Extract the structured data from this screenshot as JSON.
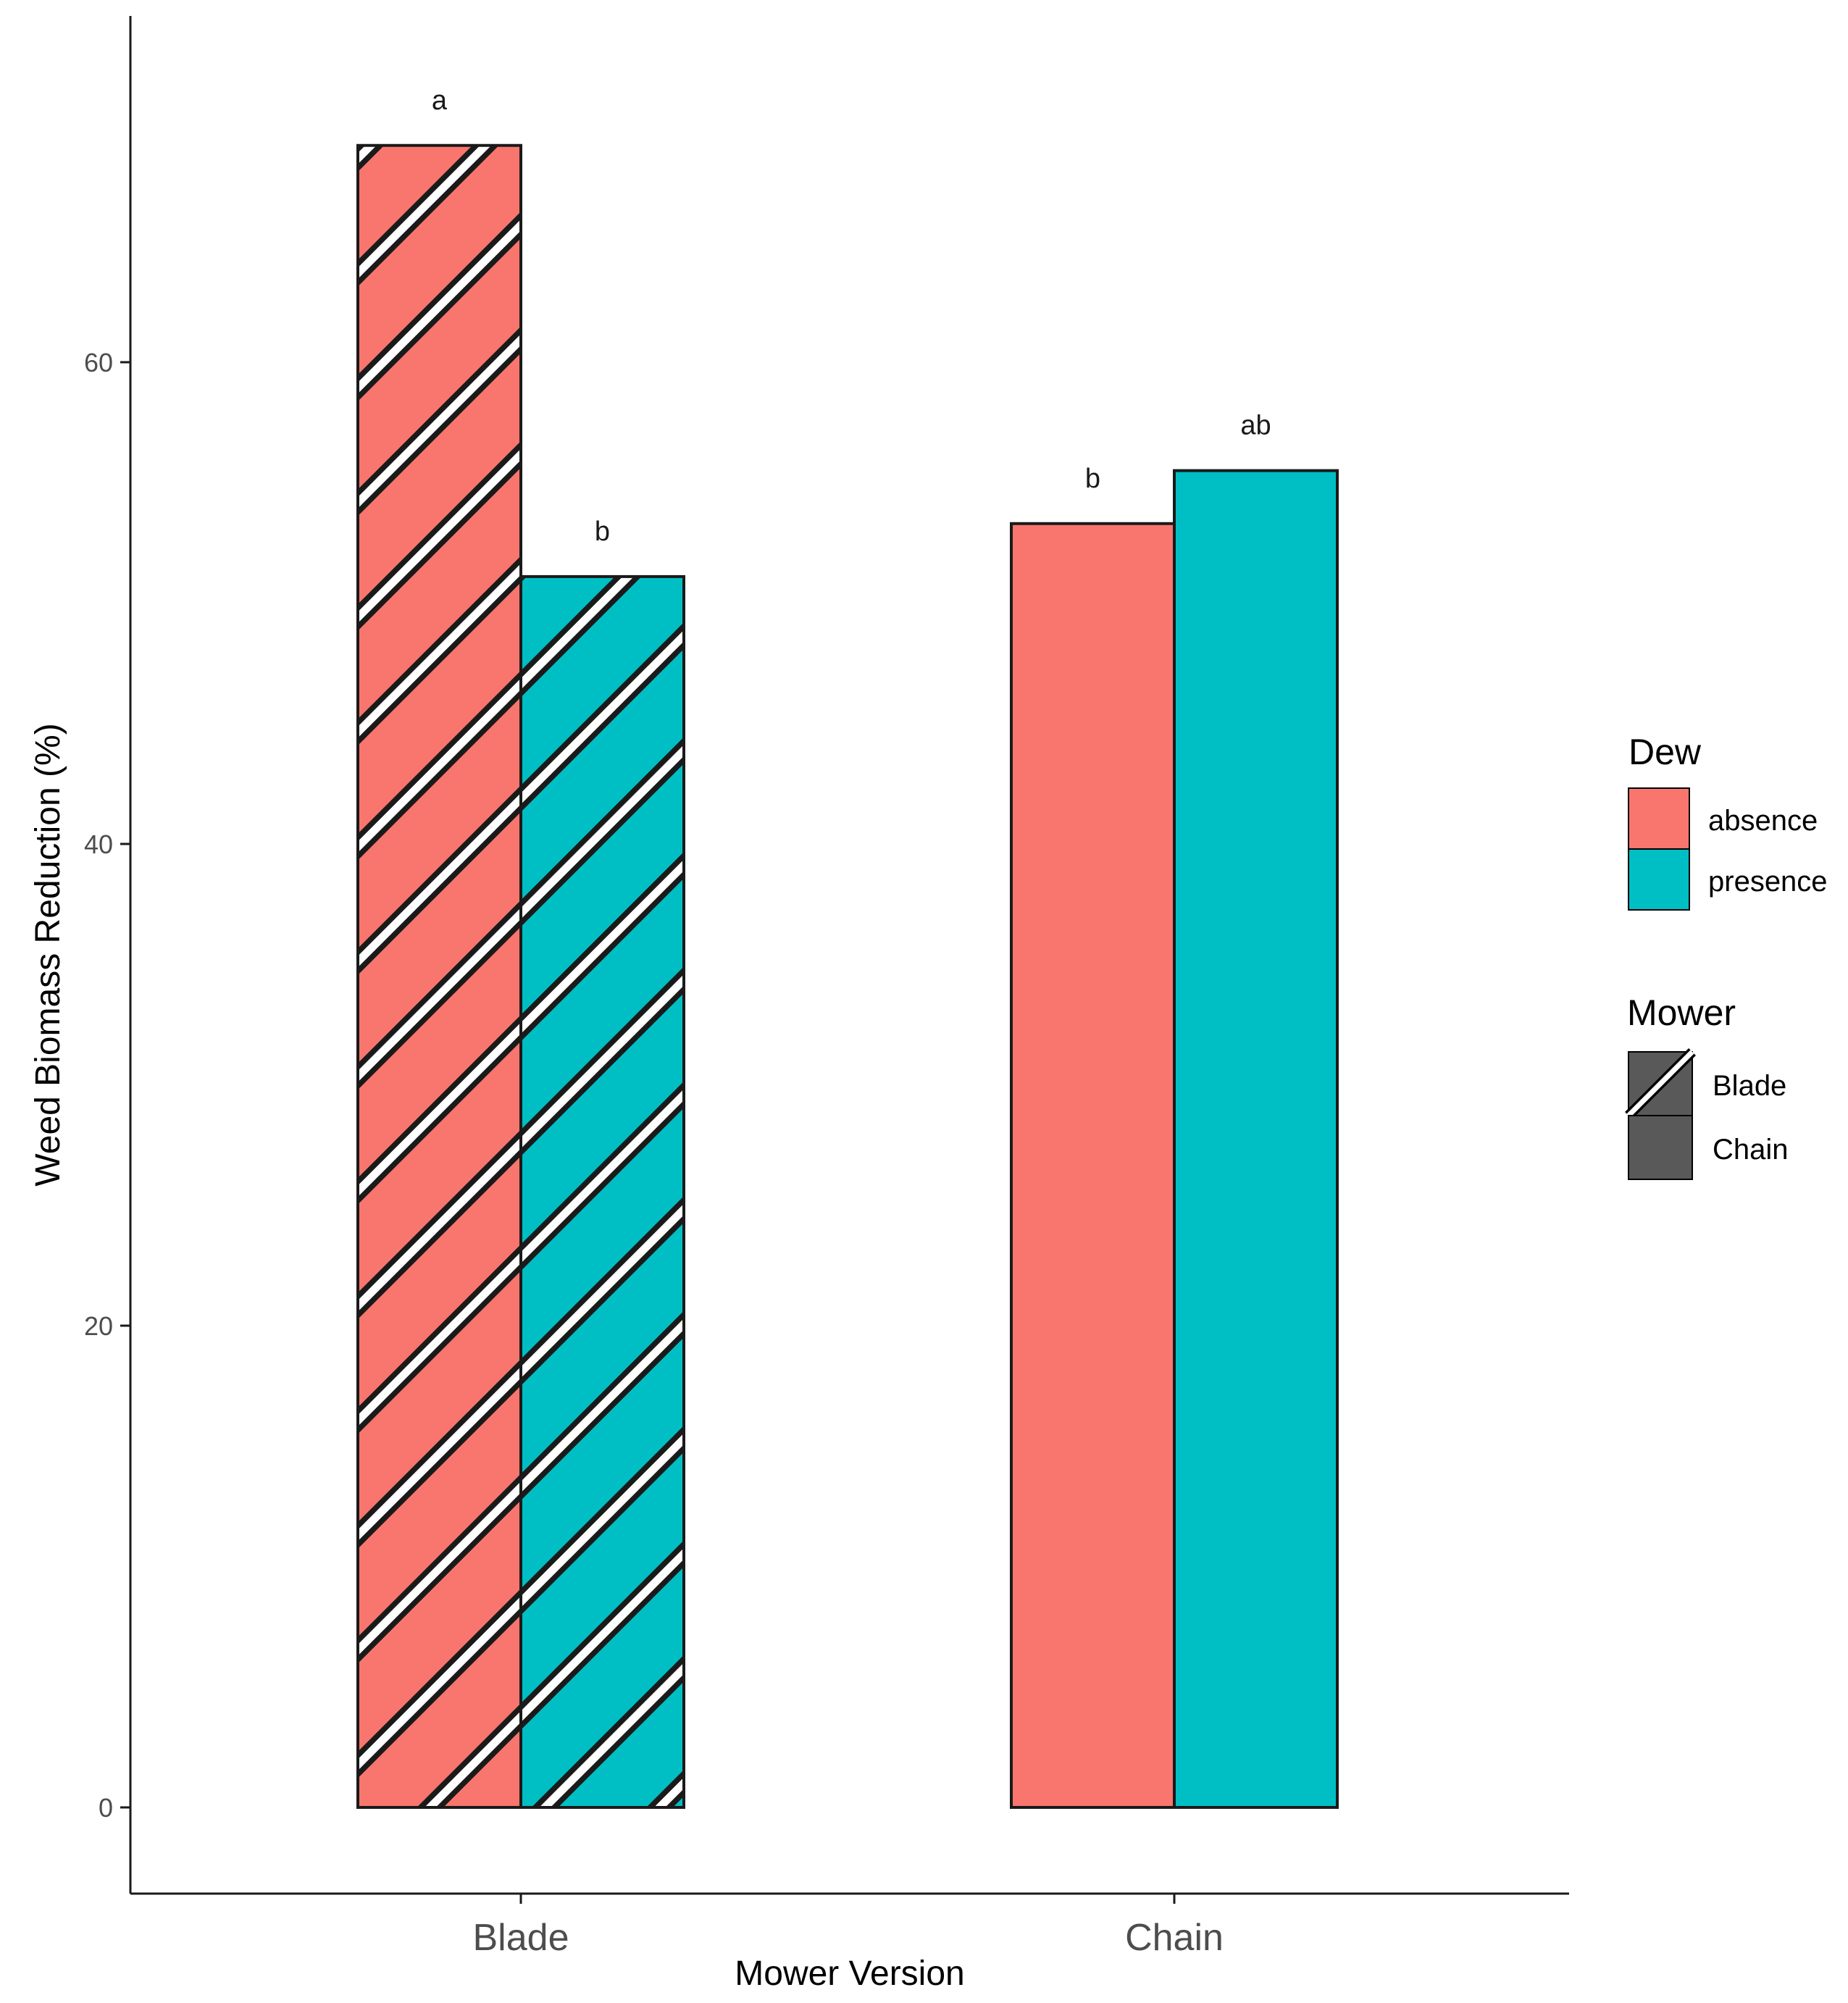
{
  "chart_data": {
    "type": "bar",
    "categories": [
      "Blade",
      "Chain"
    ],
    "series": [
      {
        "name": "absence",
        "color": "#F8766D",
        "values": [
          69,
          53.3
        ],
        "labels": [
          "a",
          "b"
        ]
      },
      {
        "name": "presence",
        "color": "#00BFC4",
        "values": [
          51.1,
          55.5
        ],
        "labels": [
          "b",
          "ab"
        ]
      }
    ],
    "patterned_categories": [
      "Blade"
    ],
    "xlabel": "Mower Version",
    "ylabel": "Weed Biomass Reduction (%)",
    "yticks": [
      0,
      20,
      40,
      60
    ],
    "ylim": [
      -3.5,
      72.5
    ],
    "legends": [
      {
        "title": "Dew",
        "items": [
          {
            "label": "absence",
            "color": "#F8766D"
          },
          {
            "label": "presence",
            "color": "#00BFC4"
          }
        ]
      },
      {
        "title": "Mower",
        "items": [
          {
            "label": "Blade",
            "pattern": "stripe"
          },
          {
            "label": "Chain",
            "pattern": "none"
          }
        ]
      }
    ],
    "legend_position": "right"
  }
}
